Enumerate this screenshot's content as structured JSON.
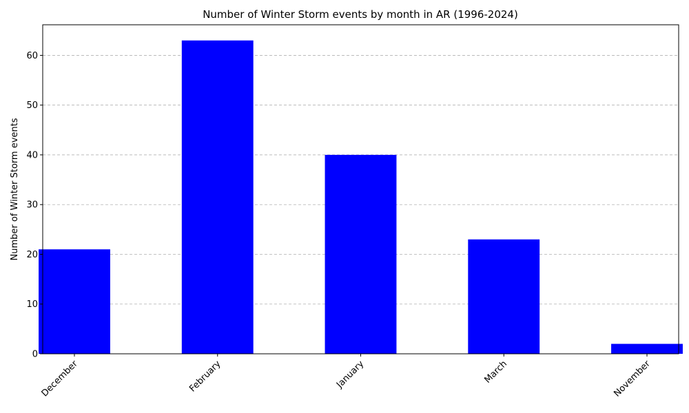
{
  "chart_data": {
    "type": "bar",
    "title": "Number of Winter Storm events by month in AR (1996-2024)",
    "xlabel": "",
    "ylabel": "Number of Winter Storm events",
    "categories": [
      "December",
      "February",
      "January",
      "March",
      "November"
    ],
    "values": [
      21,
      63,
      40,
      23,
      2
    ],
    "ylim": [
      0,
      66.15
    ],
    "yticks": [
      0,
      10,
      20,
      30,
      40,
      50,
      60
    ],
    "grid": "y",
    "bar_color": "#0000ff",
    "xtick_rotation": 45
  }
}
